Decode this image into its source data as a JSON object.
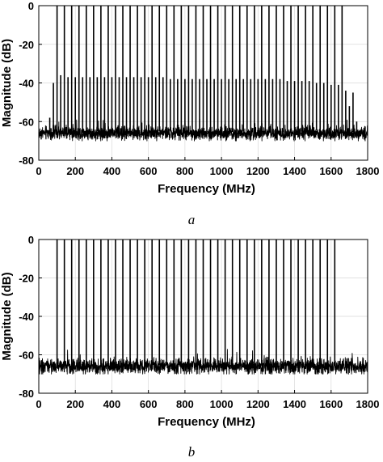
{
  "chart_data": [
    {
      "type": "line",
      "caption": "a",
      "xlabel": "Frequency (MHz)",
      "ylabel": "Magnitude (dB)",
      "xlim": [
        0,
        1800
      ],
      "ylim": [
        -80,
        0
      ],
      "xticks": [
        0,
        200,
        400,
        600,
        800,
        1000,
        1200,
        1400,
        1600,
        1800
      ],
      "xtick_labels": [
        "0",
        "200",
        "400",
        "600",
        "800",
        "1000",
        "1200",
        "1400",
        "1600",
        "1800"
      ],
      "yticks": [
        0,
        -20,
        -40,
        -60,
        -80
      ],
      "ytick_labels": [
        "0",
        "-20",
        "-40",
        "-60",
        "-80"
      ],
      "grid": true,
      "line_color": "#000000",
      "noise_floor_db": -66,
      "noise_spread_db": 3,
      "series": [
        {
          "peaks_mhz": [
            60,
            80,
            100,
            120,
            140,
            160,
            180,
            200,
            220,
            240,
            260,
            280,
            300,
            320,
            340,
            360,
            380,
            400,
            420,
            440,
            460,
            480,
            500,
            520,
            540,
            560,
            580,
            600,
            620,
            640,
            660,
            680,
            700,
            720,
            740,
            760,
            780,
            800,
            820,
            840,
            860,
            880,
            900,
            920,
            940,
            960,
            980,
            1000,
            1020,
            1040,
            1060,
            1080,
            1100,
            1120,
            1140,
            1160,
            1180,
            1200,
            1220,
            1240,
            1260,
            1280,
            1300,
            1320,
            1340,
            1360,
            1380,
            1400,
            1420,
            1440,
            1460,
            1480,
            1500,
            1520,
            1540,
            1560,
            1580,
            1600,
            1620,
            1640,
            1660,
            1680,
            1700,
            1720,
            1740
          ],
          "peaks_db": [
            -58,
            -40,
            0,
            -36,
            0,
            -37,
            0,
            -37,
            0,
            -37,
            0,
            -37,
            0,
            -37,
            0,
            -37,
            0,
            -37,
            0,
            -37,
            0,
            -37,
            0,
            -37,
            0,
            -37,
            0,
            -37,
            0,
            -37,
            0,
            -37,
            0,
            -38,
            0,
            -38,
            0,
            -38,
            0,
            -38,
            0,
            -38,
            0,
            -38,
            0,
            -38,
            0,
            -38,
            0,
            -38,
            0,
            -38,
            0,
            -38,
            0,
            -38,
            0,
            -38,
            0,
            -38,
            0,
            -38,
            0,
            -38,
            0,
            -39,
            0,
            -39,
            0,
            -39,
            0,
            -39,
            0,
            -40,
            0,
            -40,
            0,
            -41,
            0,
            -41,
            0,
            -44,
            -52,
            -45,
            -60
          ]
        }
      ]
    },
    {
      "type": "line",
      "caption": "b",
      "xlabel": "Frequency (MHz)",
      "ylabel": "Magnitude (dB)",
      "xlim": [
        0,
        1800
      ],
      "ylim": [
        -80,
        0
      ],
      "xticks": [
        0,
        200,
        400,
        600,
        800,
        1000,
        1200,
        1400,
        1600,
        1800
      ],
      "xtick_labels": [
        "0",
        "200",
        "400",
        "600",
        "800",
        "1000",
        "1200",
        "1400",
        "1600",
        "1800"
      ],
      "yticks": [
        0,
        -20,
        -40,
        -60,
        -80
      ],
      "ytick_labels": [
        "0",
        "-20",
        "-40",
        "-60",
        "-80"
      ],
      "grid": true,
      "line_color": "#000000",
      "noise_floor_db": -66,
      "noise_spread_db": 3.5,
      "series": [
        {
          "peaks_mhz": [
            100,
            140,
            180,
            220,
            260,
            300,
            340,
            380,
            420,
            460,
            500,
            540,
            580,
            620,
            660,
            700,
            740,
            780,
            820,
            860,
            900,
            940,
            980,
            1020,
            1060,
            1100,
            1140,
            1180,
            1220,
            1260,
            1300,
            1340,
            1380,
            1420,
            1460,
            1500,
            1540,
            1580,
            1620
          ],
          "peaks_db": [
            0,
            0,
            0,
            0,
            0,
            0,
            0,
            0,
            0,
            0,
            0,
            0,
            0,
            0,
            0,
            0,
            0,
            0,
            0,
            0,
            0,
            0,
            0,
            0,
            0,
            0,
            0,
            0,
            0,
            0,
            0,
            0,
            0,
            0,
            0,
            0,
            0,
            0,
            0
          ]
        }
      ]
    }
  ]
}
